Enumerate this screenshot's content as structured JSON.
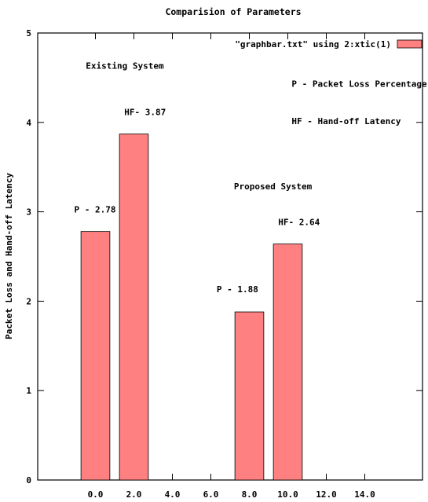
{
  "chart_data": {
    "type": "bar",
    "title": "Comparision of Parameters",
    "xlabel": "",
    "ylabel": "Packet Loss and Hand-off Latency",
    "xlim": [
      -3,
      17
    ],
    "ylim": [
      0,
      5
    ],
    "x_ticks": [
      "0.0",
      "2.0",
      "4.0",
      "6.0",
      "8.0",
      "10.0",
      "12.0",
      "14.0"
    ],
    "y_ticks": [
      "0",
      "1",
      "2",
      "3",
      "4",
      "5"
    ],
    "legend": {
      "position": "top-right",
      "label": "\"graphbar.txt\" using 2:xtic(1)",
      "color": "#ff8080"
    },
    "bar_color": "#ff8080",
    "bars": [
      {
        "x": 0,
        "value": 2.78
      },
      {
        "x": 2,
        "value": 3.87
      },
      {
        "x": 8,
        "value": 1.88
      },
      {
        "x": 10,
        "value": 2.64
      }
    ],
    "annotations": [
      {
        "text": "Existing System",
        "x": -0.5,
        "y": 4.6
      },
      {
        "text": "HF- 3.87",
        "x": 1.5,
        "y": 4.08
      },
      {
        "text": "P - 2.78",
        "x": -1.1,
        "y": 2.99
      },
      {
        "text": "P - Packet Loss Percentage",
        "x": 10.2,
        "y": 4.4
      },
      {
        "text": "HF - Hand-off Latency",
        "x": 10.2,
        "y": 3.98
      },
      {
        "text": "Proposed System",
        "x": 7.2,
        "y": 3.25
      },
      {
        "text": "HF- 2.64",
        "x": 9.5,
        "y": 2.85
      },
      {
        "text": "P - 1.88",
        "x": 6.3,
        "y": 2.1
      }
    ]
  }
}
